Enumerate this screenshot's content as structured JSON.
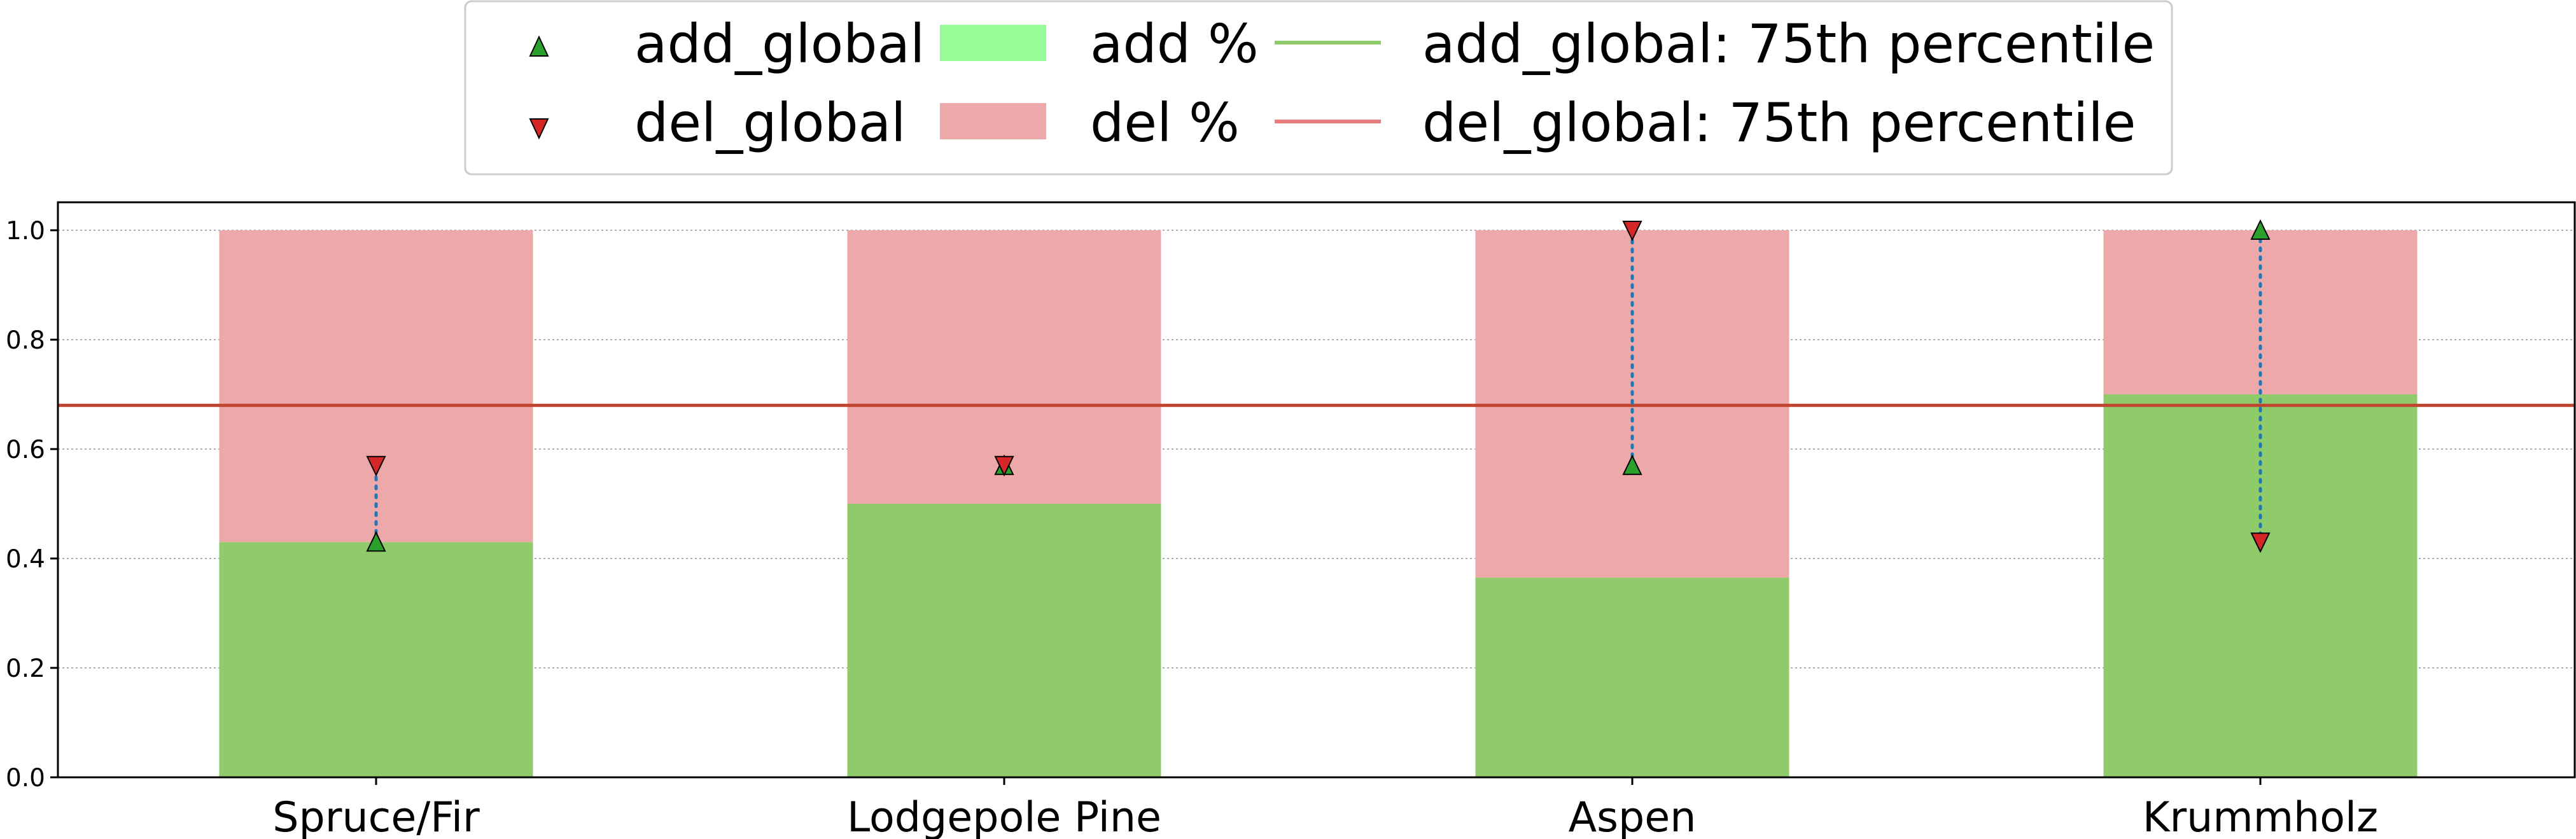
{
  "chart_data": {
    "type": "bar",
    "categories": [
      "Spruce/Fir",
      "Lodgepole Pine",
      "Aspen",
      "Krummholz"
    ],
    "series": [
      {
        "name": "add %",
        "stacked": true,
        "color": "#8fcb6b",
        "values": [
          0.43,
          0.5,
          0.365,
          0.7
        ]
      },
      {
        "name": "del %",
        "stacked": true,
        "color": "#eda8aa",
        "values": [
          0.57,
          0.5,
          0.635,
          0.3
        ]
      },
      {
        "name": "add_global",
        "type": "scatter",
        "marker": "triangle-up",
        "color": "#2ca02c",
        "values": [
          0.43,
          0.57,
          0.57,
          1.0
        ]
      },
      {
        "name": "del_global",
        "type": "scatter",
        "marker": "triangle-down",
        "color": "#d62728",
        "values": [
          0.57,
          0.57,
          1.0,
          0.43
        ]
      }
    ],
    "reference_lines": [
      {
        "name": "add_global: 75th percentile",
        "color": "#8fcb6b",
        "y": 0.68
      },
      {
        "name": "del_global: 75th percentile",
        "color": "#e87d7d",
        "y": 0.68
      }
    ],
    "plotted_line_color": "#c0442f",
    "connector_color": "#1f77b4",
    "yticks": [
      "0.0",
      "0.2",
      "0.4",
      "0.6",
      "0.8",
      "1.0"
    ],
    "ylim": [
      0,
      1.05
    ],
    "grid": "y-dotted",
    "legend_placement": "top-center-outside",
    "legend_patch_colors": {
      "add %": "#98fb98",
      "del %": "#eda8aa"
    },
    "title": "",
    "xlabel": "",
    "ylabel": ""
  }
}
